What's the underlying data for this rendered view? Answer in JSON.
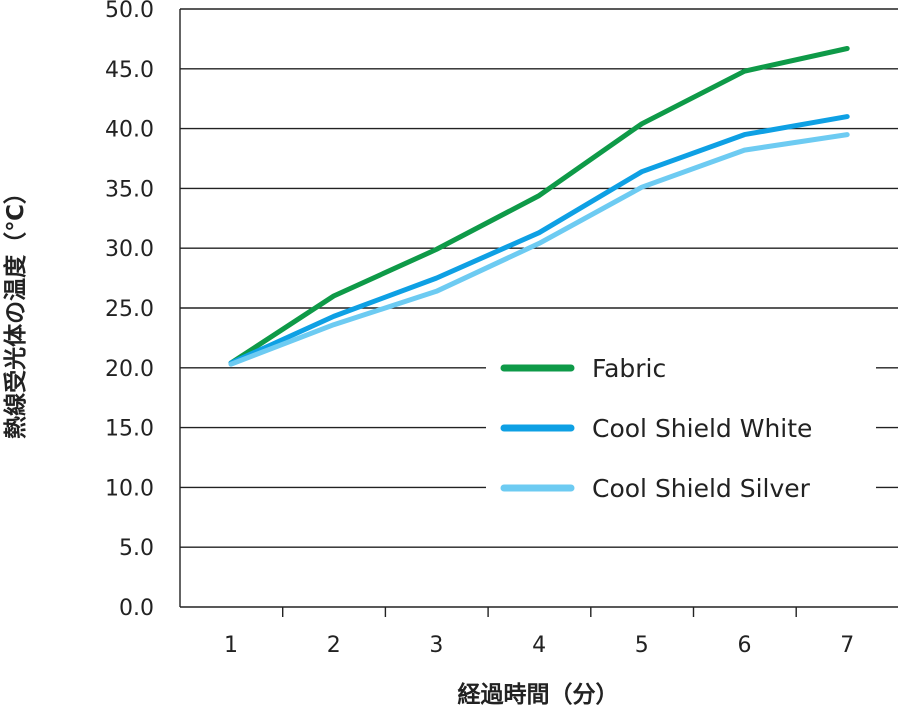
{
  "chart_data": {
    "type": "line",
    "title": "",
    "xlabel": "経過時間（分）",
    "ylabel": "熱線受光体の温度（℃）",
    "categories": [
      "1",
      "2",
      "3",
      "4",
      "5",
      "6",
      "7"
    ],
    "y_ticks": [
      "0.0",
      "5.0",
      "10.0",
      "15.0",
      "20.0",
      "25.0",
      "30.0",
      "35.0",
      "40.0",
      "45.0",
      "50.0"
    ],
    "ylim": [
      0,
      50
    ],
    "grid": true,
    "legend_position": "lower-right",
    "series": [
      {
        "name": "Fabric",
        "color": "#0e9a48",
        "values": [
          20.4,
          26.0,
          29.9,
          34.4,
          40.4,
          44.8,
          46.7
        ]
      },
      {
        "name": "Cool Shield White",
        "color": "#0ea0e4",
        "values": [
          20.4,
          24.3,
          27.5,
          31.3,
          36.4,
          39.5,
          41.0
        ]
      },
      {
        "name": "Cool Shield Silver",
        "color": "#6dcbf2",
        "values": [
          20.3,
          23.6,
          26.4,
          30.4,
          35.1,
          38.2,
          39.5
        ]
      }
    ]
  }
}
